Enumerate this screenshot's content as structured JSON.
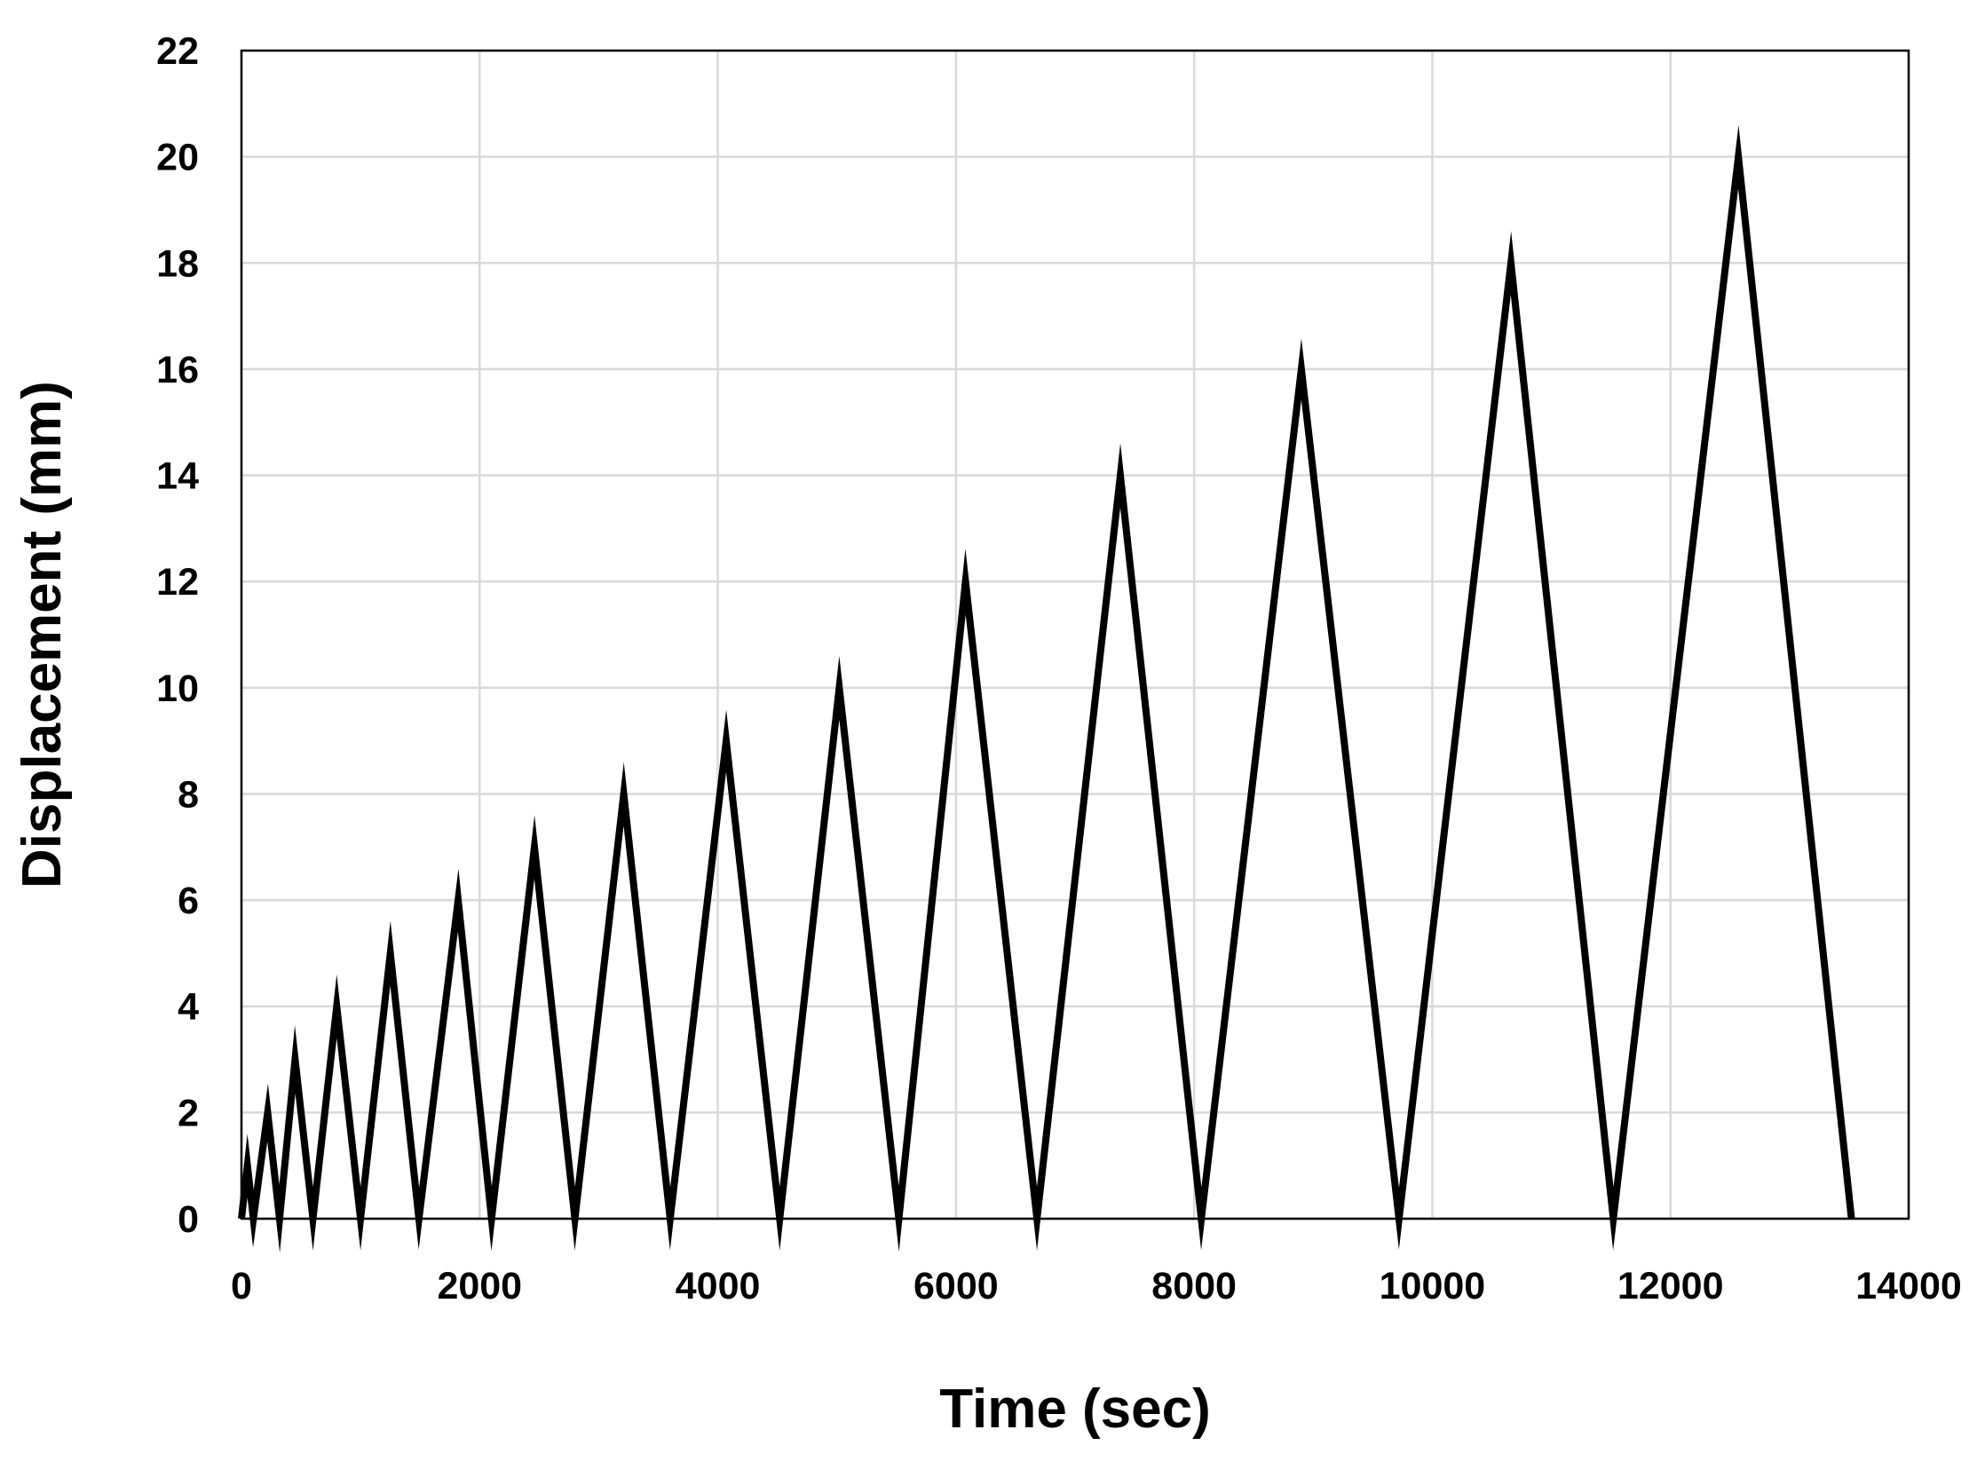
{
  "chart_data": {
    "type": "line",
    "title": "",
    "xlabel": "Time (sec)",
    "ylabel": "Displacement (mm)",
    "xlim": [
      0,
      14000
    ],
    "ylim": [
      0,
      22
    ],
    "xticks": [
      0,
      2000,
      4000,
      6000,
      8000,
      10000,
      12000,
      14000
    ],
    "yticks": [
      0,
      2,
      4,
      6,
      8,
      10,
      12,
      14,
      16,
      18,
      20,
      22
    ],
    "grid": true,
    "legend": "none",
    "series": [
      {
        "color": "#000000",
        "x": [
          0,
          50,
          100,
          220,
          320,
          450,
          600,
          800,
          1000,
          1250,
          1490,
          1820,
          2100,
          2460,
          2800,
          3210,
          3600,
          4070,
          4520,
          5020,
          5520,
          6080,
          6680,
          7380,
          8060,
          8900,
          9720,
          10660,
          11520,
          12570,
          13520
        ],
        "y": [
          0,
          1,
          0,
          2,
          0,
          3,
          0,
          4,
          0,
          5,
          0,
          6,
          0,
          7,
          0,
          8,
          0,
          9,
          0,
          10,
          0,
          12,
          0,
          14,
          0,
          16,
          0,
          18,
          0,
          20,
          0
        ]
      }
    ]
  }
}
